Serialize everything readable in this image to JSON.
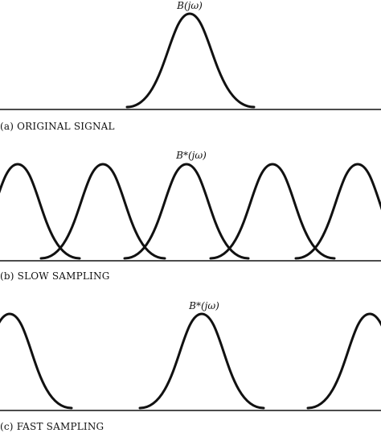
{
  "panels": [
    {
      "id": "a",
      "caption": "(a) ORIGINAL SIGNAL",
      "curve_label": "B(jω)",
      "peak_count": 1
    },
    {
      "id": "b",
      "caption": "(b) SLOW SAMPLING",
      "curve_label": "B*(jω)",
      "peak_count": 5
    },
    {
      "id": "c",
      "caption": "(c) FAST SAMPLING",
      "curve_label": "B*(jω)",
      "peak_count": 3
    }
  ]
}
